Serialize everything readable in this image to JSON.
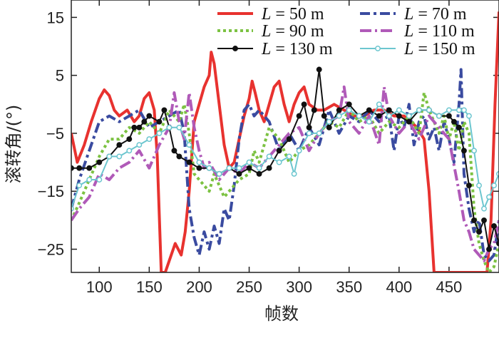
{
  "chart_data": {
    "type": "line",
    "title": "",
    "xlabel": "帧数",
    "ylabel": "滚转角/(°)",
    "xlim": [
      72,
      500
    ],
    "ylim": [
      -29,
      18
    ],
    "xticks": [
      100,
      150,
      200,
      250,
      300,
      350,
      400,
      450
    ],
    "yticks": [
      15,
      5,
      -5,
      -15,
      -25
    ],
    "legend_position": "top-right",
    "series": [
      {
        "name": "L = 50 m",
        "var": "L",
        "value": "50 m",
        "color": "#e8322f",
        "dash": "",
        "marker": "none",
        "x": [
          72,
          78,
          85,
          92,
          100,
          105,
          110,
          115,
          120,
          128,
          135,
          140,
          145,
          150,
          155,
          158,
          162,
          166,
          170,
          176,
          182,
          186,
          190,
          195,
          200,
          205,
          210,
          212,
          215,
          220,
          225,
          230,
          235,
          240,
          245,
          250,
          253,
          256,
          260,
          265,
          270,
          275,
          280,
          285,
          290,
          295,
          300,
          305,
          310,
          318,
          325,
          335,
          345,
          355,
          365,
          375,
          385,
          395,
          405,
          412,
          418,
          425,
          430,
          435,
          440,
          445,
          455,
          465,
          475,
          482,
          488,
          492,
          496,
          500
        ],
        "y": [
          -5,
          -10,
          -7,
          -3,
          1,
          2.5,
          1.5,
          -1,
          -2,
          -1,
          -3,
          -2,
          1,
          2,
          -1,
          -9,
          -29,
          -29,
          -27,
          -24,
          -26,
          -22,
          -15,
          -3,
          0,
          3,
          5,
          9,
          7,
          0,
          -7,
          -11,
          -10,
          -6,
          -2,
          1,
          4,
          2,
          -1,
          -3,
          0,
          3,
          4,
          0,
          -3,
          0,
          2,
          3,
          0,
          -1,
          -1,
          0,
          -1,
          -2,
          -2,
          -1,
          -1,
          -2,
          -2,
          -3,
          -4,
          -6,
          -15,
          -29,
          -29,
          -29,
          -29,
          -29,
          -29,
          -29,
          -29,
          -20,
          0,
          16
        ]
      },
      {
        "name": "L = 70 m",
        "var": "L",
        "value": "70 m",
        "color": "#3a4ba0",
        "dash": "14 5 4 5",
        "marker": "none",
        "x": [
          72,
          80,
          90,
          100,
          110,
          120,
          130,
          140,
          150,
          160,
          170,
          180,
          185,
          190,
          195,
          200,
          205,
          210,
          215,
          220,
          225,
          230,
          235,
          240,
          245,
          250,
          255,
          260,
          270,
          280,
          290,
          300,
          310,
          320,
          330,
          340,
          350,
          360,
          370,
          380,
          390,
          395,
          400,
          405,
          410,
          415,
          420,
          425,
          430,
          435,
          440,
          445,
          450,
          455,
          460,
          462,
          465,
          470,
          475,
          480,
          485,
          490,
          495,
          500
        ],
        "y": [
          -18,
          -13,
          -8,
          -3,
          -2,
          -3,
          -2,
          -1,
          -4,
          -3,
          -2,
          -1,
          -5,
          -18,
          -23,
          -26,
          -22,
          -25,
          -21,
          -24,
          -18,
          -20,
          -14,
          -6,
          -1,
          0,
          -2,
          -1,
          -3,
          -8,
          -5,
          -8,
          -4,
          -7,
          -1,
          -5,
          -2,
          -3,
          -1,
          -3,
          -2,
          -8,
          -2,
          -4,
          0,
          -7,
          -3,
          -2,
          -6,
          -4,
          -8,
          -3,
          -6,
          -10,
          0,
          6,
          -12,
          -18,
          -22,
          -20,
          -26,
          -27,
          -26,
          -20
        ]
      },
      {
        "name": "L = 90 m",
        "var": "L",
        "value": "90 m",
        "color": "#7cc242",
        "dash": "4 4",
        "marker": "none",
        "x": [
          72,
          80,
          90,
          100,
          110,
          120,
          130,
          140,
          150,
          160,
          170,
          180,
          185,
          190,
          195,
          200,
          205,
          210,
          215,
          220,
          225,
          230,
          235,
          240,
          250,
          255,
          260,
          270,
          280,
          290,
          300,
          310,
          320,
          330,
          340,
          350,
          360,
          370,
          380,
          390,
          400,
          410,
          420,
          425,
          430,
          435,
          440,
          445,
          450,
          455,
          460,
          465,
          470,
          475,
          480,
          485,
          490,
          495,
          500
        ],
        "y": [
          -20,
          -17,
          -13,
          -9,
          -6,
          -6,
          -4,
          -5,
          -3,
          -5,
          -1,
          -3,
          0,
          -5,
          -12,
          -13,
          -14,
          -15,
          -12,
          -14,
          -16,
          -15,
          -14,
          -13,
          -12,
          -8,
          -10,
          -4,
          -6,
          -10,
          -8,
          -7,
          -5,
          -3,
          -4,
          -1,
          -3,
          -2,
          -5,
          -3,
          -4,
          -2,
          -5,
          2,
          -1,
          -3,
          -5,
          -2,
          -6,
          -3,
          -8,
          -3,
          -5,
          -18,
          -24,
          -27,
          -29,
          -28,
          -24
        ]
      },
      {
        "name": "L = 110 m",
        "var": "L",
        "value": "110 m",
        "color": "#b05ab8",
        "dash": "16 5 3 5",
        "marker": "none",
        "x": [
          72,
          80,
          90,
          100,
          110,
          120,
          130,
          140,
          150,
          160,
          170,
          175,
          180,
          185,
          190,
          195,
          200,
          205,
          210,
          220,
          230,
          240,
          250,
          260,
          270,
          280,
          290,
          300,
          310,
          320,
          330,
          340,
          345,
          350,
          360,
          370,
          380,
          385,
          390,
          400,
          410,
          420,
          430,
          440,
          450,
          460,
          465,
          470,
          475,
          480,
          485,
          490,
          495,
          500
        ],
        "y": [
          -20,
          -18,
          -16,
          -12,
          -13,
          -11,
          -10,
          -8,
          -11,
          -7,
          -4,
          2,
          -3,
          -6,
          2,
          -4,
          -8,
          -11,
          -10,
          -13,
          -11,
          -12,
          -10,
          -11,
          -9,
          -7,
          -5,
          -4,
          -8,
          -5,
          -3,
          -2,
          3,
          -3,
          -5,
          -2,
          -7,
          3,
          -2,
          -5,
          -3,
          -6,
          -2,
          -4,
          -6,
          -15,
          -20,
          -22,
          -25,
          -26,
          -27,
          -25,
          -24,
          -20
        ]
      },
      {
        "name": "L = 130 m",
        "var": "L",
        "value": "130 m",
        "color": "#111111",
        "dash": "",
        "marker": "filled",
        "x": [
          72,
          80,
          90,
          100,
          110,
          120,
          130,
          135,
          140,
          145,
          150,
          160,
          165,
          170,
          175,
          180,
          190,
          200,
          210,
          220,
          230,
          240,
          250,
          260,
          270,
          280,
          290,
          300,
          305,
          310,
          315,
          320,
          325,
          330,
          340,
          350,
          360,
          370,
          380,
          390,
          400,
          410,
          420,
          430,
          440,
          450,
          455,
          460,
          465,
          470,
          475,
          480,
          485,
          490,
          495,
          500
        ],
        "y": [
          -11,
          -11,
          -11,
          -10,
          -9,
          -7,
          -6,
          -4,
          -4,
          -3,
          -2,
          -3,
          -1,
          -4,
          -8,
          -9,
          -10,
          -11,
          -11,
          -12,
          -11,
          -12,
          -11,
          -12,
          -11,
          -8,
          -6,
          -2,
          0,
          -4,
          -1,
          6,
          -2,
          -4,
          -1,
          0,
          -2,
          -1,
          -2,
          -1,
          -2,
          -3,
          -1,
          -1,
          -2,
          -2,
          -3,
          -4,
          -8,
          -14,
          -20,
          -22,
          -20,
          -25,
          -21,
          -24
        ]
      },
      {
        "name": "L = 150 m",
        "var": "L",
        "value": "150 m",
        "color": "#6cc6cf",
        "dash": "",
        "marker": "open",
        "x": [
          72,
          80,
          90,
          100,
          110,
          120,
          130,
          140,
          150,
          160,
          170,
          180,
          190,
          200,
          210,
          220,
          230,
          240,
          250,
          260,
          270,
          280,
          290,
          295,
          300,
          310,
          320,
          330,
          340,
          350,
          360,
          370,
          380,
          390,
          400,
          410,
          420,
          430,
          440,
          450,
          460,
          465,
          470,
          475,
          480,
          485,
          490,
          495,
          500
        ],
        "y": [
          -18,
          -14,
          -13,
          -13,
          -9,
          -9,
          -8,
          -7,
          -6,
          -5,
          -4,
          -4,
          -7,
          -10,
          -11,
          -12,
          -11,
          -11,
          -10,
          -11,
          -9,
          -10,
          -9,
          -12,
          -8,
          -5,
          -5,
          -3,
          -2,
          -1,
          -2,
          -3,
          0,
          -2,
          -1,
          -2,
          -1,
          -1,
          -2,
          -1,
          -1,
          -1,
          -2,
          -8,
          -14,
          -18,
          -16,
          -14,
          -12
        ]
      }
    ]
  }
}
